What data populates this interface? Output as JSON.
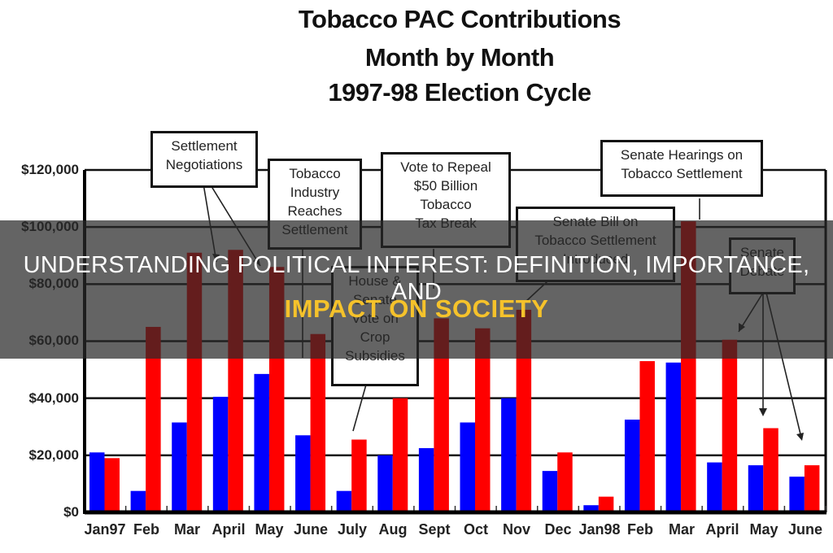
{
  "chart_data": {
    "type": "bar",
    "title": "Tobacco PAC Contributions",
    "subtitle": [
      "Month by Month",
      "1997-98 Election Cycle"
    ],
    "xlabel": "",
    "ylabel": "",
    "ylim": [
      0,
      120000
    ],
    "yticks": [
      "$0",
      "$20,000",
      "$40,000",
      "$60,000",
      "$80,000",
      "$100,000",
      "$120,000"
    ],
    "grid": true,
    "legend": null,
    "categories": [
      "Jan97",
      "Feb",
      "Mar",
      "April",
      "May",
      "June",
      "July",
      "Aug",
      "Sept",
      "Oct",
      "Nov",
      "Dec",
      "Jan98",
      "Feb",
      "Mar",
      "April",
      "May",
      "June"
    ],
    "series": [
      {
        "name": "Blue series",
        "color": "#0000FF",
        "values": [
          21000,
          7500,
          31500,
          40500,
          48500,
          27000,
          7500,
          20000,
          22500,
          31500,
          40000,
          14500,
          2500,
          32500,
          52500,
          17500,
          16500,
          12500
        ]
      },
      {
        "name": "Red series",
        "color": "#FF0000",
        "values": [
          19000,
          65000,
          91000,
          92000,
          86000,
          62500,
          25500,
          40000,
          68000,
          64500,
          71000,
          21000,
          5500,
          53000,
          102000,
          60500,
          29500,
          16500
        ]
      }
    ],
    "annotations": [
      {
        "text": "Settlement Negotiations",
        "points_to": [
          "Mar",
          "May"
        ]
      },
      {
        "text": "Tobacco Industry Reaches Settlement",
        "points_to": [
          "June"
        ]
      },
      {
        "text": "House & Senate Vote on Crop Subsidies",
        "points_to": [
          "July"
        ]
      },
      {
        "text": "Vote to Repeal $50 Billion Tobacco Tax Break",
        "points_to": [
          "Aug"
        ]
      },
      {
        "text": "Senate Bill on Tobacco Settlement Introduced",
        "points_to": [
          "Nov"
        ]
      },
      {
        "text": "Senate Hearings on Tobacco Settlement",
        "points_to": [
          "Mar (1998)"
        ]
      },
      {
        "text": "Senate Debate",
        "points_to": [
          "April (1998)",
          "May (1998)",
          "June (1998)"
        ]
      }
    ]
  },
  "chart": {
    "title_line1": "Tobacco PAC Contributions",
    "title_line2": "Month by Month",
    "title_line3": "1997-98 Election Cycle",
    "yticks": [
      "$120,000",
      "$100,000",
      "$80,000",
      "$60,000",
      "$40,000",
      "$20,000",
      "$0"
    ],
    "months": [
      "Jan97",
      "Feb",
      "Mar",
      "April",
      "May",
      "June",
      "July",
      "Aug",
      "Sept",
      "Oct",
      "Nov",
      "Dec",
      "Jan98",
      "Feb",
      "Mar",
      "April",
      "May",
      "June"
    ],
    "annotations": {
      "settlement_negotiations": [
        "Settlement",
        "Negotiations"
      ],
      "industry_settlement": [
        "Tobacco",
        "Industry",
        "Reaches",
        "Settlement"
      ],
      "crop_subsidies": [
        "House &",
        "Senate",
        "Vote on",
        "Crop",
        "Subsidies"
      ],
      "tax_break": [
        "Vote to Repeal",
        "$50 Billion",
        "Tobacco",
        "Tax Break"
      ],
      "senate_bill": [
        "Senate Bill on",
        "Tobacco Settlement",
        "Introduced"
      ],
      "senate_hearings": [
        "Senate Hearings on",
        "Tobacco Settlement"
      ],
      "senate_debate": [
        "Senate",
        "Debate"
      ]
    },
    "colors": {
      "blue": "#0000FF",
      "red": "#FF0000",
      "axis": "#111111"
    }
  },
  "overlay": {
    "headline_line1": "UNDERSTANDING POLITICAL INTEREST: DEFINITION, IMPORTANCE, AND",
    "headline_line2": "IMPACT ON SOCIETY",
    "headline_line2_color": "#F5C22B"
  }
}
